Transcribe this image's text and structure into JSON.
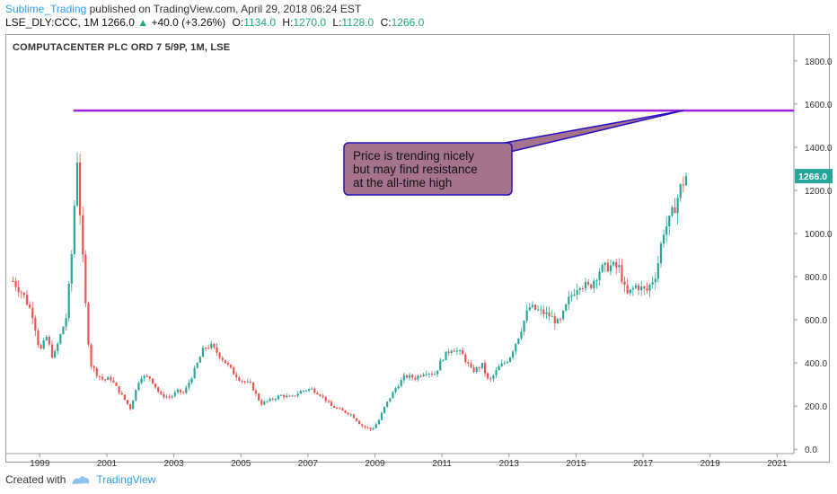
{
  "header": {
    "author": "Sublime_Trading",
    "published_text": "published on TradingView.com, April 29, 2018 06:24 EST",
    "symbol": "LSE_DLY:CCC, 1M",
    "last": "1266.0",
    "change": "+40.0 (+3.26%)",
    "open_label": "O:",
    "open": "1134.0",
    "high_label": "H:",
    "high": "1270.0",
    "low_label": "L:",
    "low": "1128.0",
    "close_label": "C:",
    "close": "1266.0"
  },
  "footer": {
    "created_with": "Created with",
    "brand": "TradingView"
  },
  "colors": {
    "up": "#26a69a",
    "down": "#ef5350",
    "resistance": "#9a22e0",
    "callout_fill": "#a6738e",
    "callout_border": "#2a0fbf",
    "price_tag": "#26a69a"
  },
  "chart_data": {
    "type": "candlestick",
    "title": "COMPUTACENTER PLC ORD 7 5/9P, 1M, LSE",
    "xlim": [
      1998.0,
      2021.5
    ],
    "ylim": [
      -20,
      1920
    ],
    "x_ticks": [
      "1999",
      "2001",
      "2003",
      "2005",
      "2007",
      "2009",
      "2011",
      "2013",
      "2015",
      "2017",
      "2019",
      "2021"
    ],
    "y_ticks": [
      "0.0",
      "200.0",
      "400.0",
      "600.0",
      "800.0",
      "1000.0",
      "1200.0",
      "1400.0",
      "1600.0",
      "1800.0"
    ],
    "last_price_label": "1266.0",
    "resistance": {
      "price": 1570,
      "from": 2000.0
    },
    "annotation": {
      "lines": [
        "Price is trending nicely",
        "but may find resistance",
        "at the all-time high"
      ],
      "points_to": [
        2018.2,
        1570
      ]
    },
    "close_path": [
      [
        1998.2,
        780
      ],
      [
        1998.5,
        720
      ],
      [
        1998.8,
        620
      ],
      [
        1999.0,
        450
      ],
      [
        1999.2,
        520
      ],
      [
        1999.4,
        420
      ],
      [
        1999.6,
        520
      ],
      [
        1999.8,
        620
      ],
      [
        2000.0,
        1000
      ],
      [
        2000.1,
        1400
      ],
      [
        2000.2,
        1100
      ],
      [
        2000.35,
        700
      ],
      [
        2000.5,
        400
      ],
      [
        2000.7,
        350
      ],
      [
        2000.9,
        320
      ],
      [
        2001.1,
        330
      ],
      [
        2001.4,
        260
      ],
      [
        2001.7,
        190
      ],
      [
        2002.0,
        340
      ],
      [
        2002.3,
        330
      ],
      [
        2002.6,
        250
      ],
      [
        2002.9,
        240
      ],
      [
        2003.1,
        270
      ],
      [
        2003.3,
        260
      ],
      [
        2003.6,
        360
      ],
      [
        2003.9,
        470
      ],
      [
        2004.1,
        480
      ],
      [
        2004.4,
        430
      ],
      [
        2004.8,
        350
      ],
      [
        2005.0,
        320
      ],
      [
        2005.3,
        300
      ],
      [
        2005.6,
        210
      ],
      [
        2005.9,
        230
      ],
      [
        2006.2,
        250
      ],
      [
        2006.5,
        240
      ],
      [
        2006.8,
        270
      ],
      [
        2007.1,
        280
      ],
      [
        2007.4,
        250
      ],
      [
        2007.7,
        200
      ],
      [
        2008.0,
        180
      ],
      [
        2008.3,
        160
      ],
      [
        2008.6,
        110
      ],
      [
        2008.9,
        90
      ],
      [
        2009.1,
        130
      ],
      [
        2009.3,
        200
      ],
      [
        2009.6,
        280
      ],
      [
        2009.9,
        340
      ],
      [
        2010.2,
        330
      ],
      [
        2010.5,
        360
      ],
      [
        2010.8,
        350
      ],
      [
        2011.0,
        420
      ],
      [
        2011.3,
        470
      ],
      [
        2011.6,
        440
      ],
      [
        2011.9,
        360
      ],
      [
        2012.2,
        390
      ],
      [
        2012.4,
        310
      ],
      [
        2012.7,
        380
      ],
      [
        2013.0,
        420
      ],
      [
        2013.3,
        530
      ],
      [
        2013.6,
        660
      ],
      [
        2013.9,
        640
      ],
      [
        2014.2,
        620
      ],
      [
        2014.5,
        580
      ],
      [
        2014.8,
        700
      ],
      [
        2015.1,
        770
      ],
      [
        2015.4,
        750
      ],
      [
        2015.7,
        830
      ],
      [
        2016.0,
        850
      ],
      [
        2016.3,
        840
      ],
      [
        2016.5,
        710
      ],
      [
        2016.8,
        760
      ],
      [
        2017.1,
        730
      ],
      [
        2017.4,
        820
      ],
      [
        2017.6,
        1010
      ],
      [
        2017.8,
        1060
      ],
      [
        2018.0,
        1150
      ],
      [
        2018.15,
        1226
      ],
      [
        2018.3,
        1266
      ]
    ]
  }
}
